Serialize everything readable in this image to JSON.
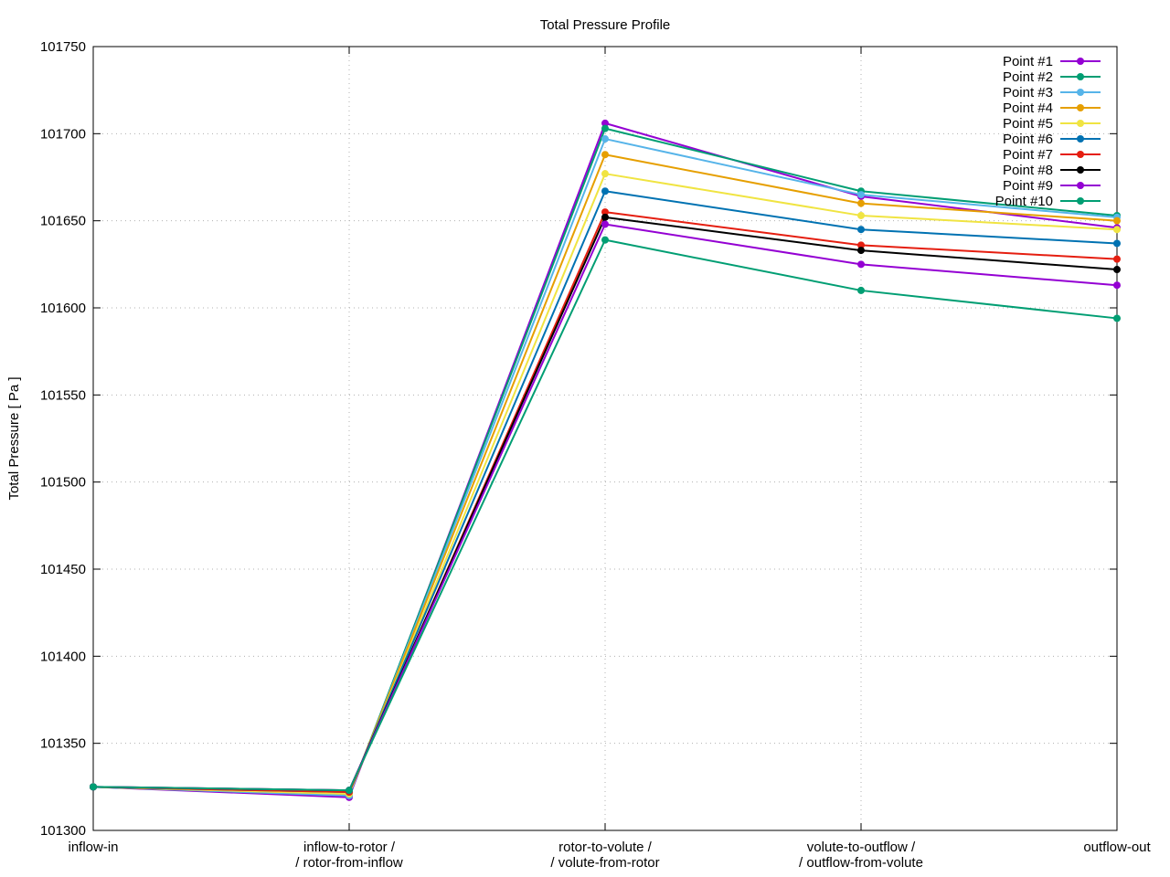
{
  "chart_data": {
    "type": "line",
    "title": "Total Pressure Profile",
    "xlabel": "",
    "ylabel": "Total Pressure [ Pa ]",
    "ylim": [
      101300,
      101750
    ],
    "yticks": [
      101300,
      101350,
      101400,
      101450,
      101500,
      101550,
      101600,
      101650,
      101700,
      101750
    ],
    "grid": true,
    "legend_position": "top-right",
    "categories": [
      [
        "inflow-in"
      ],
      [
        "inflow-to-rotor /",
        "/ rotor-from-inflow"
      ],
      [
        "rotor-to-volute /",
        "/ volute-from-rotor"
      ],
      [
        "volute-to-outflow /",
        "/ outflow-from-volute"
      ],
      [
        "outflow-out"
      ]
    ],
    "series": [
      {
        "name": "Point #1",
        "color": "#9400d3",
        "values": [
          101325,
          101319,
          101706,
          101664,
          101646
        ]
      },
      {
        "name": "Point #2",
        "color": "#009e73",
        "values": [
          101325,
          101320,
          101703,
          101667,
          101653
        ]
      },
      {
        "name": "Point #3",
        "color": "#56b4e9",
        "values": [
          101325,
          101320,
          101697,
          101665,
          101652
        ]
      },
      {
        "name": "Point #4",
        "color": "#e69f00",
        "values": [
          101325,
          101321,
          101688,
          101660,
          101650
        ]
      },
      {
        "name": "Point #5",
        "color": "#f0e442",
        "values": [
          101325,
          101321,
          101677,
          101653,
          101645
        ]
      },
      {
        "name": "Point #6",
        "color": "#0072b2",
        "values": [
          101325,
          101322,
          101667,
          101645,
          101637
        ]
      },
      {
        "name": "Point #7",
        "color": "#e51e10",
        "values": [
          101325,
          101322,
          101655,
          101636,
          101628
        ]
      },
      {
        "name": "Point #8",
        "color": "#000000",
        "values": [
          101325,
          101323,
          101652,
          101633,
          101622
        ]
      },
      {
        "name": "Point #9",
        "color": "#9400d3",
        "values": [
          101325,
          101323,
          101648,
          101625,
          101613
        ]
      },
      {
        "name": "Point #10",
        "color": "#009e73",
        "values": [
          101325,
          101323,
          101639,
          101610,
          101594
        ]
      }
    ]
  }
}
